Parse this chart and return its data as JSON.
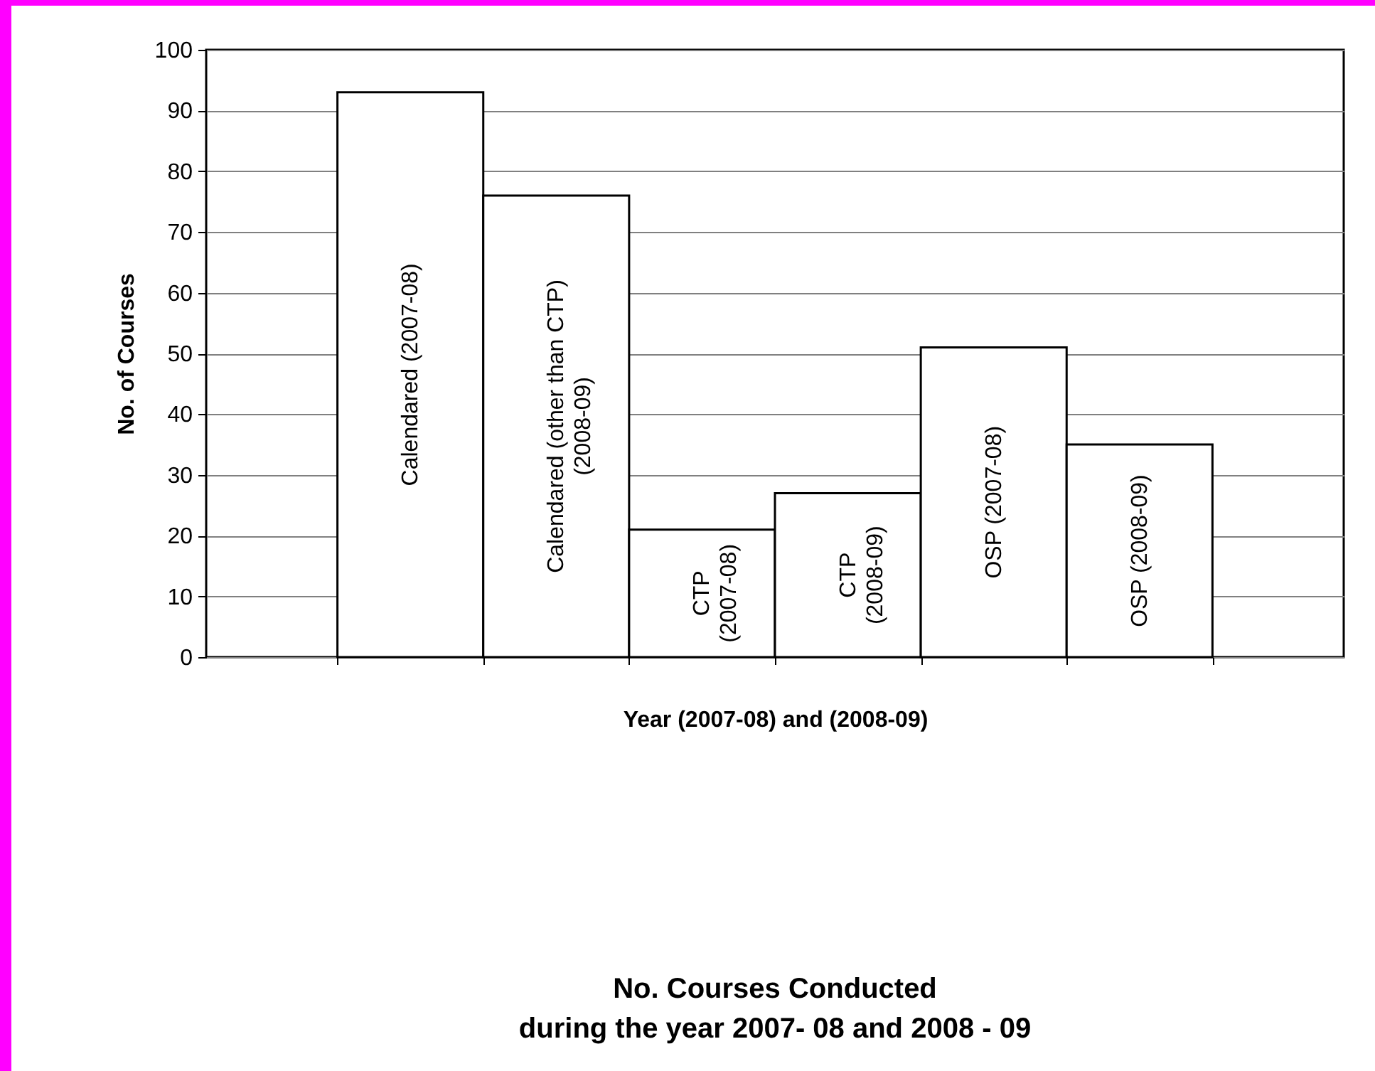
{
  "chart_data": {
    "type": "bar",
    "title": "No. Courses Conducted",
    "subtitle": "during the year 2007- 08 and 2008 - 09",
    "xlabel": "Year (2007-08) and (2008-09)",
    "ylabel": "No. of Courses",
    "categories": [
      "Calendared (2007-08)",
      "Calendared (other than CTP) (2008-09)",
      "CTP (2007-08)",
      "CTP (2008-09)",
      "OSP (2007-08)",
      "OSP (2008-09)"
    ],
    "values": [
      93,
      76,
      21,
      27,
      51,
      35
    ],
    "color": "#ffffff",
    "ylim": [
      0,
      100
    ],
    "yticks": [
      0,
      10,
      20,
      30,
      40,
      50,
      60,
      70,
      80,
      90,
      100
    ],
    "grid": "y"
  }
}
